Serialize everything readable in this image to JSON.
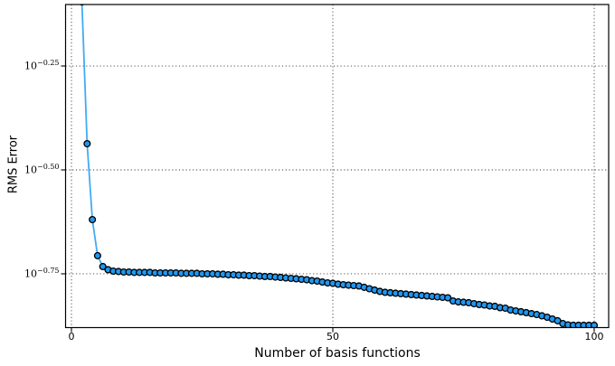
{
  "figure": {
    "background": "#ffffff",
    "spine_color": "#000000",
    "grid_color": "#3a3a3a",
    "tick_color": "#000000"
  },
  "chart_data": {
    "type": "line",
    "title": "",
    "xlabel": "Number of basis functions",
    "ylabel": "RMS Error",
    "legend": null,
    "grid": "dotted",
    "y_scale": "log10",
    "xlim": [
      -1.125,
      102.77
    ],
    "ylim": [
      0.132,
      0.7905
    ],
    "x_ticks": [
      {
        "value": 0,
        "label": "0"
      },
      {
        "value": 50,
        "label": "50"
      },
      {
        "value": 100,
        "label": "100"
      }
    ],
    "y_ticks": [
      {
        "exponent": -0.25,
        "base": "10",
        "exp_label": "−0.25"
      },
      {
        "exponent": -0.5,
        "base": "10",
        "exp_label": "−0.50"
      },
      {
        "exponent": -0.75,
        "base": "10",
        "exp_label": "−0.75"
      }
    ],
    "series": [
      {
        "name": "rms-error-curve",
        "line_color": "#43ABF3",
        "line_width": 1.8,
        "marker_shape": "circle",
        "marker_fill": "#2097F0",
        "marker_edge": "#000000",
        "marker_radius": 3.4,
        "x": [
          2,
          3,
          4,
          5,
          6,
          7,
          8,
          9,
          10,
          11,
          12,
          13,
          14,
          15,
          16,
          17,
          18,
          19,
          20,
          21,
          22,
          23,
          24,
          25,
          26,
          27,
          28,
          29,
          30,
          31,
          32,
          33,
          34,
          35,
          36,
          37,
          38,
          39,
          40,
          41,
          42,
          43,
          44,
          45,
          46,
          47,
          48,
          49,
          50,
          51,
          52,
          53,
          54,
          55,
          56,
          57,
          58,
          59,
          60,
          61,
          62,
          63,
          64,
          65,
          66,
          67,
          68,
          69,
          70,
          71,
          72,
          73,
          74,
          75,
          76,
          77,
          78,
          79,
          80,
          81,
          82,
          83,
          84,
          85,
          86,
          87,
          88,
          89,
          90,
          91,
          92,
          93,
          94,
          95,
          96,
          97,
          98,
          99,
          100
        ],
        "y": [
          0.802,
          0.3656,
          0.2401,
          0.1966,
          0.1851,
          0.1819,
          0.1805,
          0.1801,
          0.1796,
          0.1796,
          0.1792,
          0.1792,
          0.1792,
          0.1792,
          0.1787,
          0.1787,
          0.1787,
          0.1787,
          0.1787,
          0.1783,
          0.1783,
          0.1783,
          0.1783,
          0.1778,
          0.1778,
          0.1778,
          0.1774,
          0.1774,
          0.1769,
          0.1769,
          0.1765,
          0.1765,
          0.176,
          0.176,
          0.1756,
          0.1752,
          0.1752,
          0.1747,
          0.1743,
          0.1738,
          0.1734,
          0.173,
          0.1725,
          0.1721,
          0.1712,
          0.1708,
          0.1699,
          0.1691,
          0.1687,
          0.1679,
          0.1674,
          0.167,
          0.1666,
          0.1662,
          0.165,
          0.1637,
          0.1625,
          0.1613,
          0.1605,
          0.1601,
          0.1597,
          0.1593,
          0.1589,
          0.1585,
          0.1581,
          0.1577,
          0.1573,
          0.1569,
          0.1565,
          0.1561,
          0.1557,
          0.153,
          0.1522,
          0.1519,
          0.1515,
          0.1507,
          0.15,
          0.1496,
          0.1488,
          0.1485,
          0.1474,
          0.147,
          0.1455,
          0.1448,
          0.1441,
          0.1434,
          0.1426,
          0.1419,
          0.1409,
          0.1398,
          0.1384,
          0.1371,
          0.135,
          0.134,
          0.1337,
          0.1337,
          0.1337,
          0.1337,
          0.1337
        ]
      }
    ]
  }
}
